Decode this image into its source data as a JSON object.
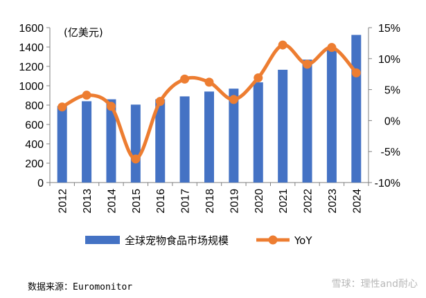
{
  "chart_data": {
    "type": "bar",
    "categories": [
      "2012",
      "2013",
      "2014",
      "2015",
      "2016",
      "2017",
      "2018",
      "2019",
      "2020",
      "2021",
      "2022",
      "2023",
      "2024"
    ],
    "series": [
      {
        "name": "全球宠物食品市场规模",
        "type": "bar",
        "axis": "left",
        "values": [
          790,
          840,
          860,
          805,
          860,
          890,
          940,
          970,
          1035,
          1165,
          1270,
          1370,
          1525
        ]
      },
      {
        "name": "YoY",
        "type": "line",
        "axis": "right",
        "values": [
          2.2,
          4.1,
          2.3,
          -6.2,
          3.1,
          6.7,
          6.2,
          3.4,
          6.9,
          12.2,
          9.1,
          11.8,
          7.7
        ]
      }
    ],
    "y_left": {
      "label": "(亿美元)",
      "ylim": [
        0,
        1600
      ],
      "ticks": [
        0,
        200,
        400,
        600,
        800,
        1000,
        1200,
        1400,
        1600
      ]
    },
    "y_right": {
      "ylim": [
        -10,
        15
      ],
      "ticks": [
        "-10%",
        "-5%",
        "0%",
        "5%",
        "10%",
        "15%"
      ]
    },
    "grid": false,
    "legend_placement": "bottom",
    "colors": {
      "bar": "#4472c4",
      "line": "#ed7d31"
    }
  },
  "source_label": "数据来源：",
  "source_value": "Euromonitor",
  "watermark": "雪球：理性and耐心"
}
